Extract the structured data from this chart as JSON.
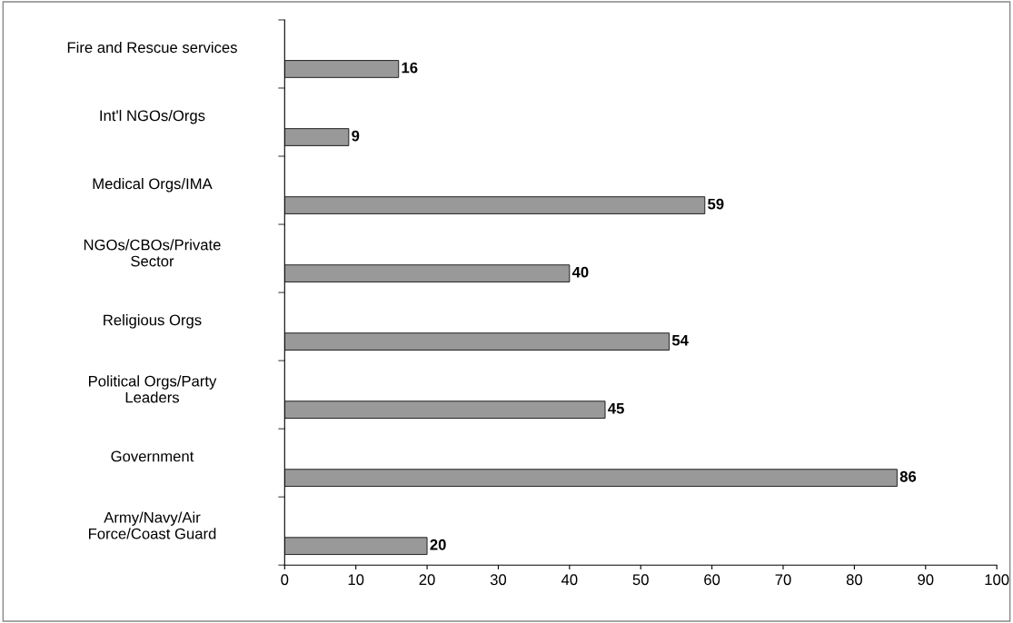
{
  "chart_data": {
    "type": "bar",
    "orientation": "horizontal",
    "categories": [
      "Fire and Rescue services",
      "Int'l NGOs/Orgs",
      "Medical Orgs/IMA",
      "NGOs/CBOs/Private\nSector",
      "Religious Orgs",
      "Political Orgs/Party\nLeaders",
      "Government",
      "Army/Navy/Air\nForce/Coast Guard"
    ],
    "values": [
      16,
      9,
      59,
      40,
      54,
      45,
      86,
      20
    ],
    "color": "#999999",
    "xlim": [
      0,
      100
    ],
    "xticks": [
      0,
      10,
      20,
      30,
      40,
      50,
      60,
      70,
      80,
      90,
      100
    ],
    "data_labels": true,
    "grid": false,
    "legend": false
  }
}
